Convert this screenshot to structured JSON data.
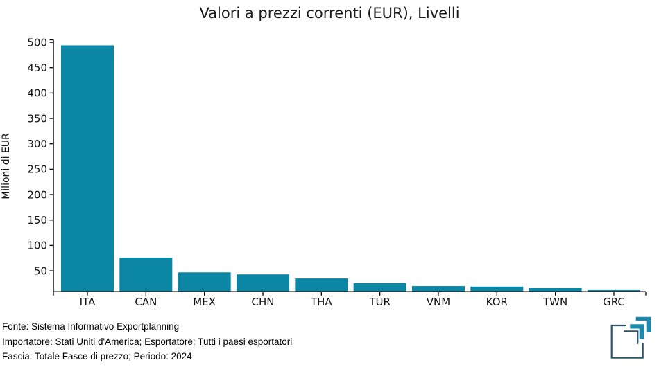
{
  "title": "Valori a prezzi correnti (EUR), Livelli",
  "chart_data": {
    "type": "bar",
    "categories": [
      "ITA",
      "CAN",
      "MEX",
      "CHN",
      "THA",
      "TUR",
      "VNM",
      "KOR",
      "TWN",
      "GRC"
    ],
    "values": [
      494,
      76,
      47,
      43,
      35,
      26,
      20,
      19,
      16,
      12
    ],
    "title": "Valori a prezzi correnti (EUR), Livelli",
    "xlabel": "",
    "ylabel": "Milioni di EUR",
    "yticks": [
      50,
      100,
      150,
      200,
      250,
      300,
      350,
      400,
      450,
      500
    ],
    "ylim": [
      9,
      504
    ],
    "grid": false,
    "legend": null,
    "bar_color": "#0b86a5",
    "axis_color": "#000000",
    "tick_label_color": "#111111"
  },
  "footer": {
    "line1": "Fonte: Sistema Informativo Exportplanning",
    "line2": "Importatore: Stati Uniti d'America; Esportatore: Tutti i paesi esportatori",
    "line3": "Fascia: Totale Fasce di prezzo; Periodo: 2024"
  },
  "logo": {
    "name": "exportplanning-logo",
    "teal": "#1e89ab",
    "navy": "#2e5568"
  }
}
